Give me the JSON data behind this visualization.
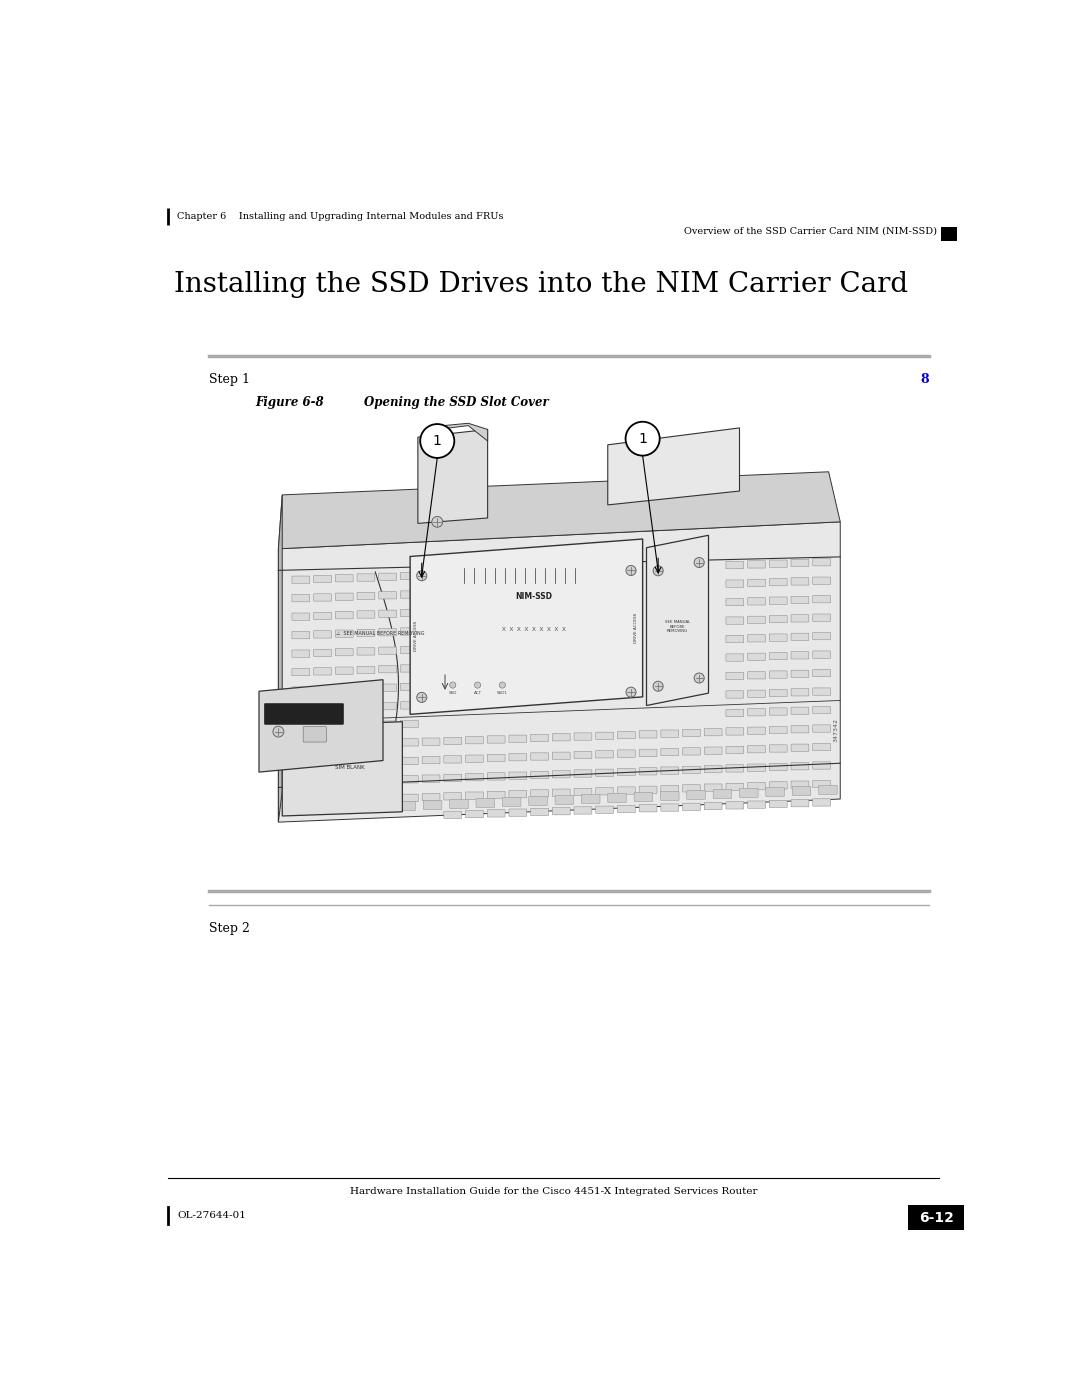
{
  "page_width": 10.8,
  "page_height": 13.97,
  "bg_color": "#ffffff",
  "header_left": "Chapter 6    Installing and Upgrading Internal Modules and FRUs",
  "header_right": "Overview of the SSD Carrier Card NIM (NIM-SSD)",
  "footer_center": "Hardware Installation Guide for the Cisco 4451-X Integrated Services Router",
  "footer_left": "OL-27644-01",
  "footer_right": "6-12",
  "main_title": "Installing the SSD Drives into the NIM Carrier Card",
  "step1_label": "Step 1",
  "step1_number": "8",
  "figure_label": "Figure 6-8",
  "figure_caption": "Opening the SSD Slot Cover",
  "step2_label": "Step 2",
  "step_number_color": "#0000cc",
  "text_color": "#000000",
  "footer_box_color": "#000000",
  "footer_text_color": "#ffffff",
  "diagram_line_color": "#333333",
  "diagram_fill_light": "#f0f0f0",
  "diagram_fill_mid": "#d8d8d8",
  "diagram_fill_dark": "#b0b0b0",
  "hole_fill": "#e8e8e8",
  "hole_edge": "#999999"
}
